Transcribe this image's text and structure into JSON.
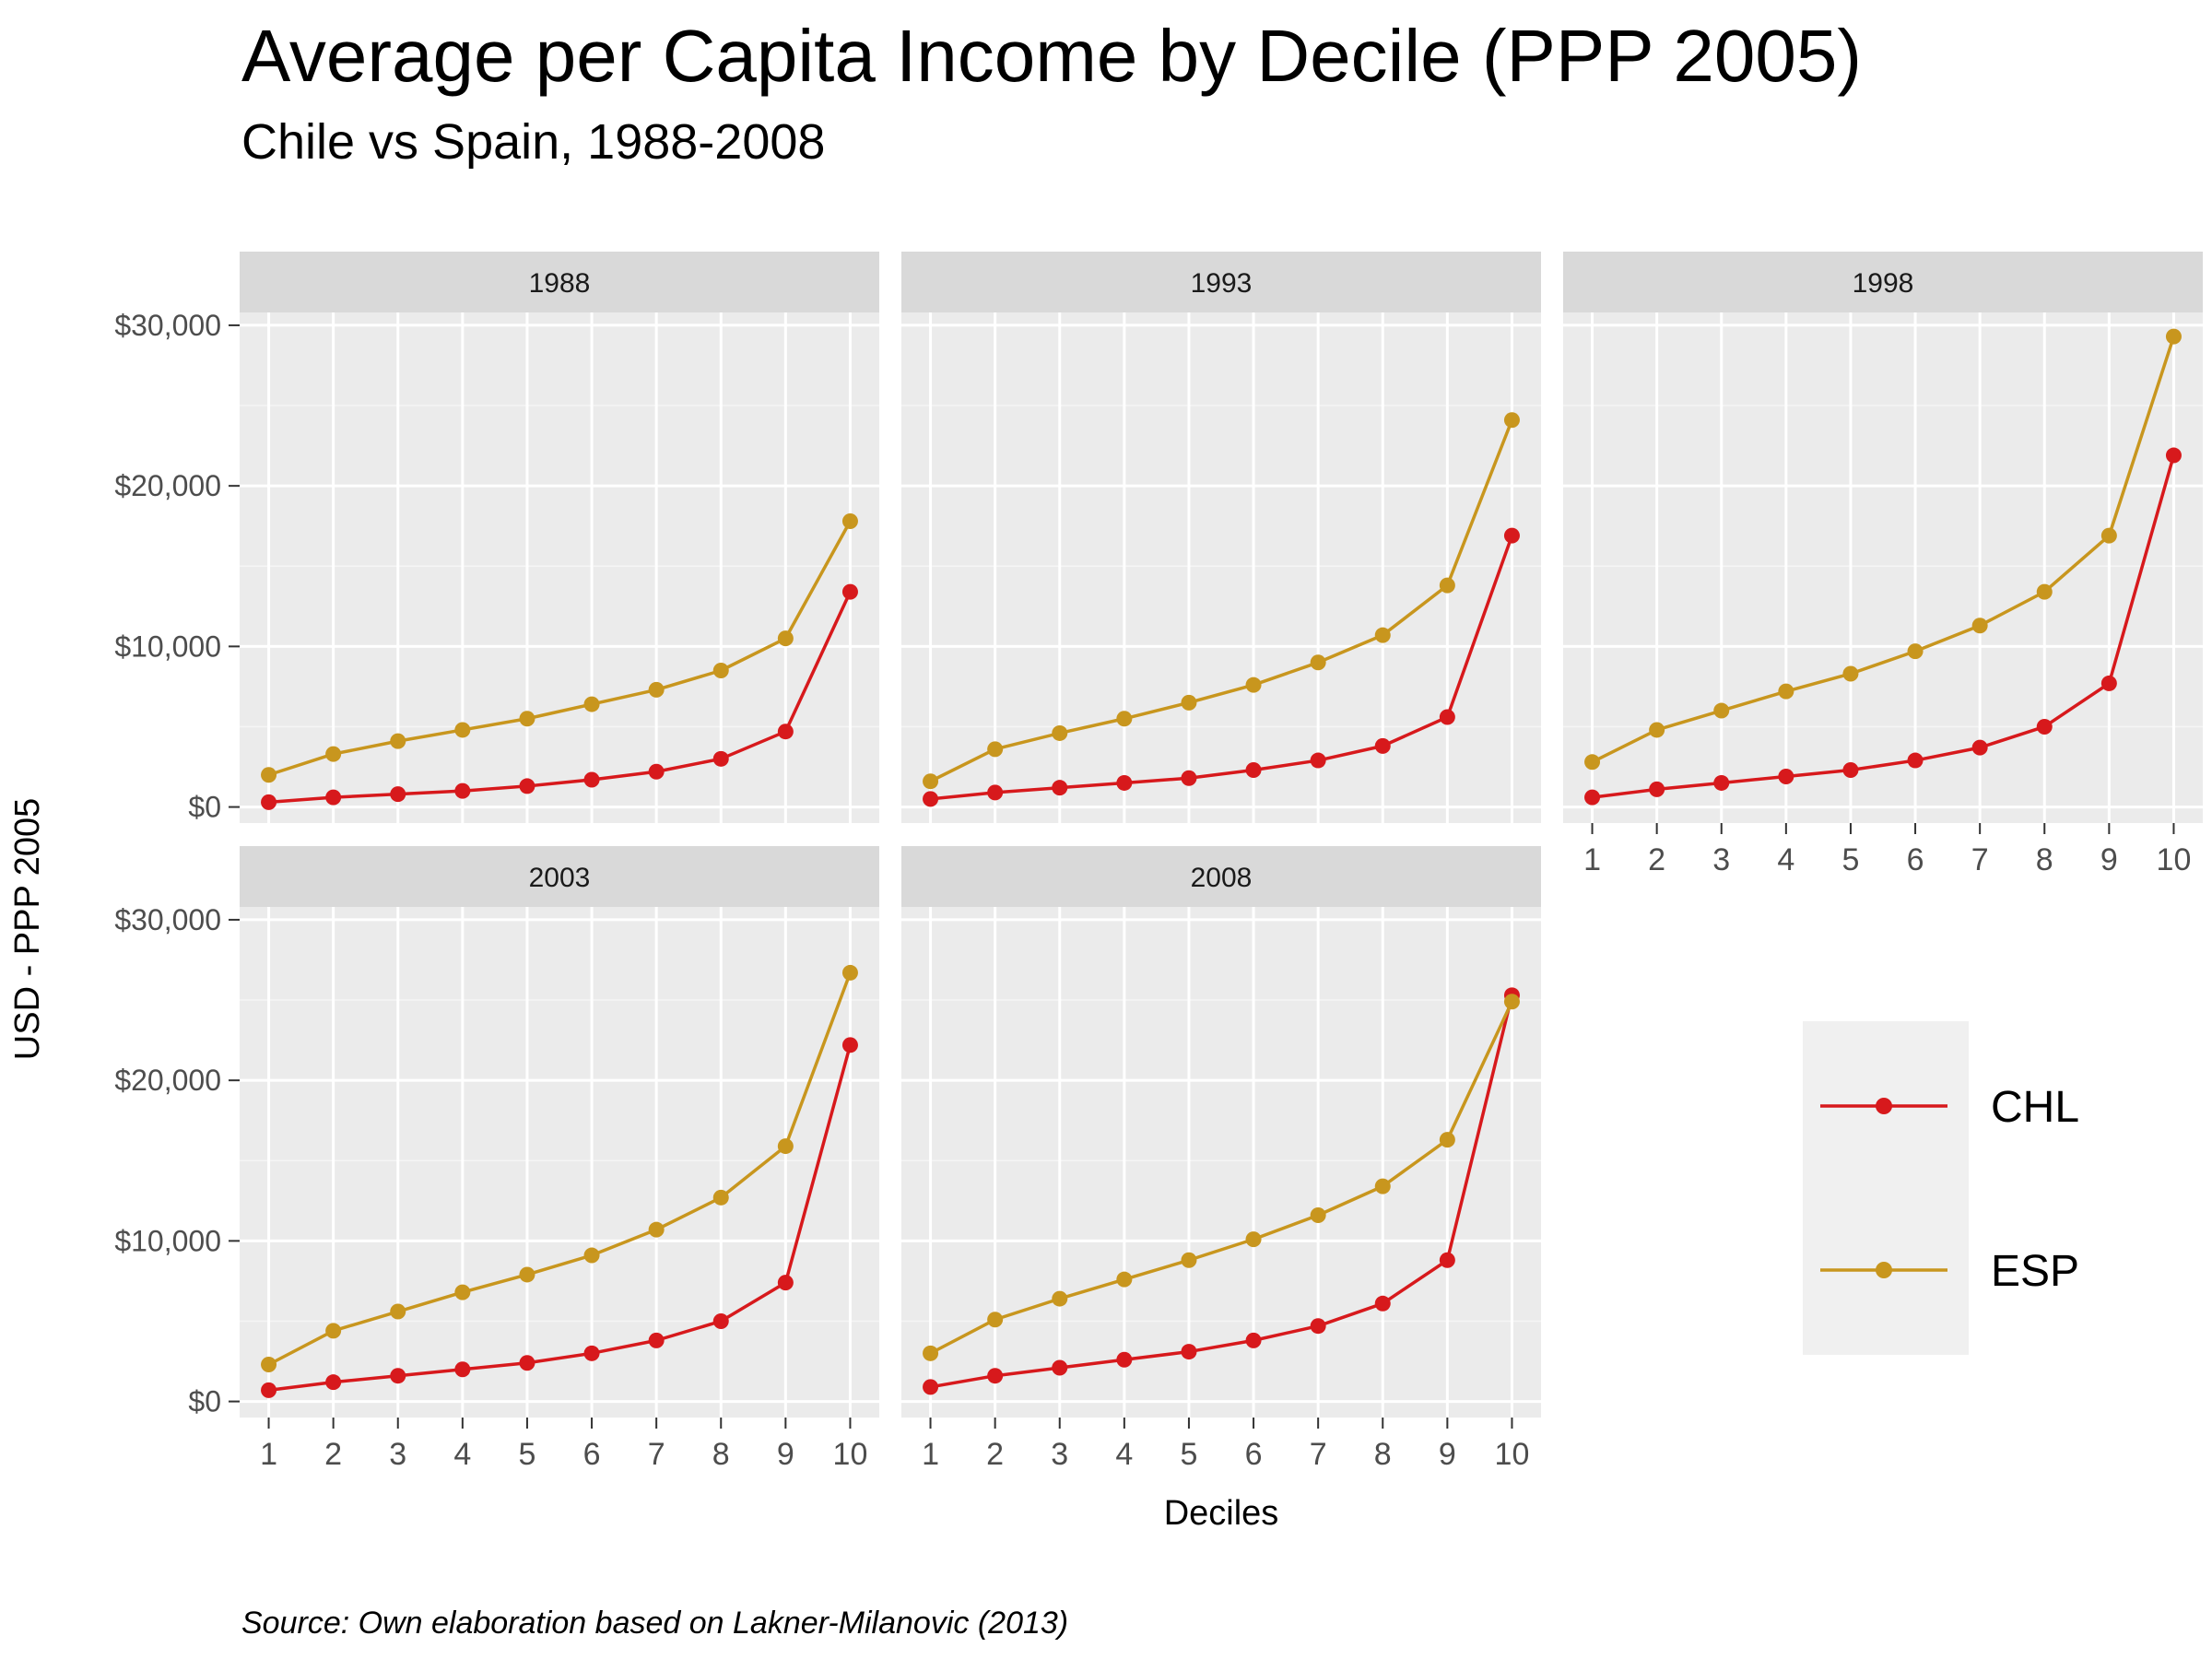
{
  "chart_data": {
    "type": "line",
    "title": "Average per Capita Income by Decile (PPP 2005)",
    "subtitle": "Chile vs Spain, 1988-2008",
    "xlabel": "Deciles",
    "ylabel": "USD - PPP 2005",
    "caption": "Source: Own elaboration based on Lakner-Milanovic (2013)",
    "x": [
      1,
      2,
      3,
      4,
      5,
      6,
      7,
      8,
      9,
      10
    ],
    "x_tick_labels": [
      "1",
      "2",
      "3",
      "4",
      "5",
      "6",
      "7",
      "8",
      "9",
      "10"
    ],
    "xlim": [
      0.55,
      10.45
    ],
    "ylim": [
      -1000,
      30800
    ],
    "y_ticks": [
      0,
      10000,
      20000,
      30000
    ],
    "y_tick_labels": [
      "$0",
      "$10,000",
      "$20,000",
      "$30,000"
    ],
    "y_minor_ticks": [
      5000,
      15000,
      25000
    ],
    "grid": true,
    "legend_position": "right",
    "colors": {
      "CHL": "#d7191c",
      "ESP": "#c8961e",
      "panel_bg": "#ebebeb",
      "strip_bg": "#d9d9d9",
      "grid": "#ffffff"
    },
    "series_names": [
      "CHL",
      "ESP"
    ],
    "panels": [
      {
        "facet": "1988",
        "series": [
          {
            "name": "CHL",
            "values": [
              300,
              600,
              800,
              1000,
              1300,
              1700,
              2200,
              3000,
              4700,
              13400
            ]
          },
          {
            "name": "ESP",
            "values": [
              2000,
              3300,
              4100,
              4800,
              5500,
              6400,
              7300,
              8500,
              10500,
              17800
            ]
          }
        ]
      },
      {
        "facet": "1993",
        "series": [
          {
            "name": "CHL",
            "values": [
              500,
              900,
              1200,
              1500,
              1800,
              2300,
              2900,
              3800,
              5600,
              16900
            ]
          },
          {
            "name": "ESP",
            "values": [
              1600,
              3600,
              4600,
              5500,
              6500,
              7600,
              9000,
              10700,
              13800,
              24100
            ]
          }
        ]
      },
      {
        "facet": "1998",
        "series": [
          {
            "name": "CHL",
            "values": [
              600,
              1100,
              1500,
              1900,
              2300,
              2900,
              3700,
              5000,
              7700,
              21900
            ]
          },
          {
            "name": "ESP",
            "values": [
              2800,
              4800,
              6000,
              7200,
              8300,
              9700,
              11300,
              13400,
              16900,
              29300
            ]
          }
        ]
      },
      {
        "facet": "2003",
        "series": [
          {
            "name": "CHL",
            "values": [
              700,
              1200,
              1600,
              2000,
              2400,
              3000,
              3800,
              5000,
              7400,
              22200
            ]
          },
          {
            "name": "ESP",
            "values": [
              2300,
              4400,
              5600,
              6800,
              7900,
              9100,
              10700,
              12700,
              15900,
              26700
            ]
          }
        ]
      },
      {
        "facet": "2008",
        "series": [
          {
            "name": "CHL",
            "values": [
              900,
              1600,
              2100,
              2600,
              3100,
              3800,
              4700,
              6100,
              8800,
              25300
            ]
          },
          {
            "name": "ESP",
            "values": [
              3000,
              5100,
              6400,
              7600,
              8800,
              10100,
              11600,
              13400,
              16300,
              24900
            ]
          }
        ]
      }
    ]
  }
}
